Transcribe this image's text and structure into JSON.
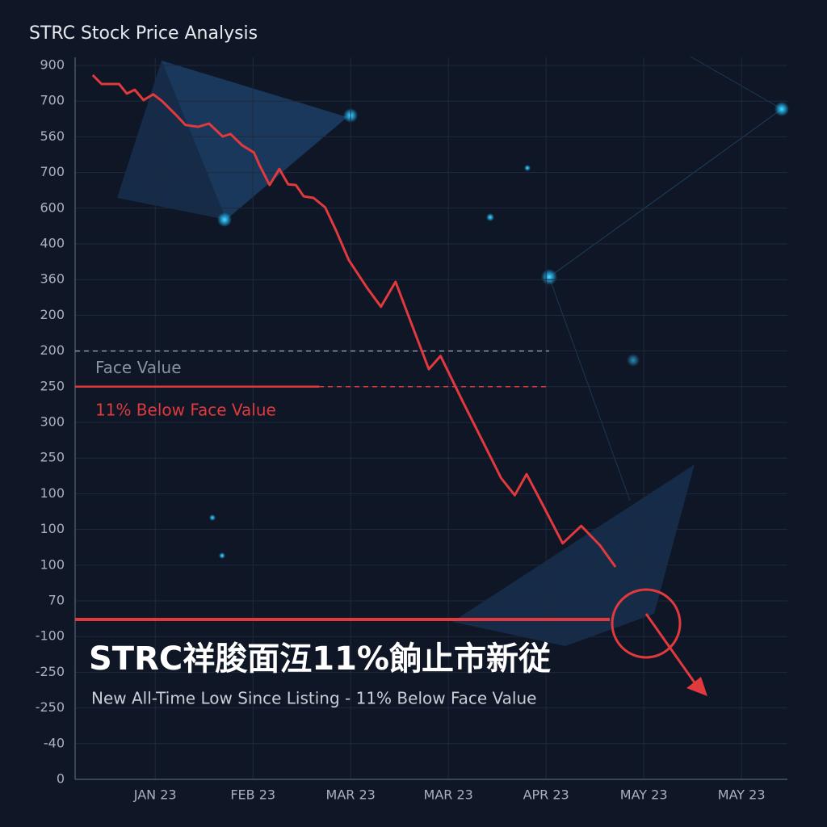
{
  "chart_data": {
    "type": "line",
    "title": "STRC Stock Price Analysis",
    "headline": "STRC祥朘面沍11%餉止市新従",
    "subtitle": "New All-Time Low Since Listing - 11% Below Face Value",
    "color": "#e0393e",
    "x": [
      0.36,
      0.45,
      0.63,
      0.71,
      0.79,
      0.88,
      0.98,
      1.07,
      1.21,
      1.31,
      1.44,
      1.55,
      1.69,
      1.77,
      1.89,
      2.01,
      2.07,
      2.17,
      2.27,
      2.36,
      2.44,
      2.52,
      2.62,
      2.74,
      2.85,
      2.98,
      3.17,
      3.31,
      3.46,
      3.61,
      3.8,
      3.92,
      4.15,
      4.37,
      4.54,
      4.68,
      4.8,
      4.97,
      5.17,
      5.36,
      5.55,
      5.71
    ],
    "values": [
      19.73,
      19.48,
      19.48,
      19.21,
      19.32,
      19.03,
      19.19,
      19.0,
      18.62,
      18.33,
      18.28,
      18.37,
      18.01,
      18.08,
      17.76,
      17.56,
      17.19,
      16.65,
      17.1,
      16.67,
      16.65,
      16.33,
      16.29,
      16.02,
      15.38,
      14.55,
      13.76,
      13.24,
      13.94,
      12.85,
      11.49,
      11.86,
      10.57,
      9.37,
      8.44,
      7.96,
      8.55,
      7.67,
      6.61,
      7.1,
      6.56,
      5.95
    ],
    "xlim": [
      0.18,
      7.47
    ],
    "xticks": [
      {
        "value": 1,
        "label": "JAN 23"
      },
      {
        "value": 2,
        "label": "FEB 23"
      },
      {
        "value": 3,
        "label": "MAR 23"
      },
      {
        "value": 4,
        "label": "MAR 23"
      },
      {
        "value": 5,
        "label": "APR 23"
      },
      {
        "value": 6,
        "label": "MAY 23"
      },
      {
        "value": 7,
        "label": "MAY 23"
      }
    ],
    "ylim": [
      0,
      20
    ],
    "yticks": [
      0,
      {
        "value": 1,
        "label": "-40"
      },
      {
        "value": 2,
        "label": "-250"
      },
      {
        "value": 3,
        "label": "-250"
      },
      {
        "value": 4,
        "label": "-100"
      },
      {
        "value": 5,
        "label": "70"
      },
      {
        "value": 6,
        "label": "100"
      },
      {
        "value": 7,
        "label": "100"
      },
      {
        "value": 8,
        "label": "100"
      },
      {
        "value": 9,
        "label": "250"
      },
      {
        "value": 10,
        "label": "300"
      },
      {
        "value": 11,
        "label": "250"
      },
      {
        "value": 12,
        "label": "200"
      },
      {
        "value": 13,
        "label": "200"
      },
      {
        "value": 14,
        "label": "360"
      },
      {
        "value": 15,
        "label": "400"
      },
      {
        "value": 16,
        "label": "600"
      },
      {
        "value": 17,
        "label": "700"
      },
      {
        "value": 18,
        "label": "560"
      },
      {
        "value": 19,
        "label": "700"
      },
      {
        "value": 20,
        "label": "900"
      }
    ],
    "grid": true,
    "reference_lines": [
      {
        "label": "Face Value",
        "value": 12,
        "color": "#8a93a3"
      },
      {
        "label": "11% Below Face Value",
        "value": 11,
        "color": "#e0393e"
      },
      {
        "value": 4.48,
        "color": "#e0393e"
      }
    ]
  }
}
